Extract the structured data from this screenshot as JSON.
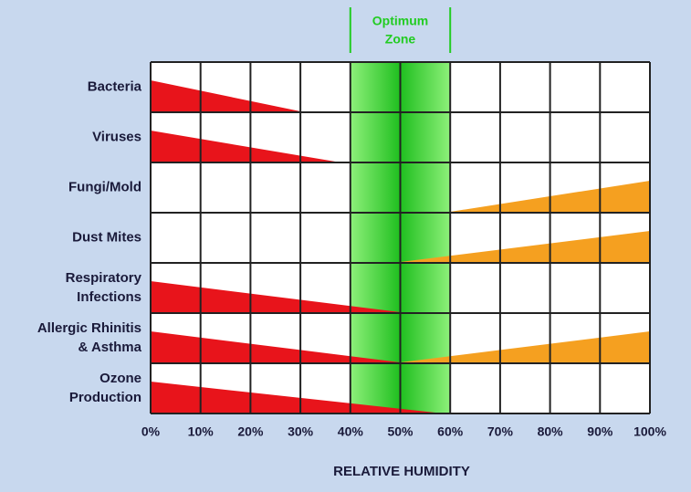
{
  "chart_data": {
    "type": "risk-wedges",
    "xlabel": "RELATIVE HUMIDITY",
    "xlim": [
      0,
      100
    ],
    "xticks": [
      {
        "value": 0,
        "label": "0%"
      },
      {
        "value": 10,
        "label": "10%"
      },
      {
        "value": 20,
        "label": "20%"
      },
      {
        "value": 30,
        "label": "30%"
      },
      {
        "value": 40,
        "label": "40%"
      },
      {
        "value": 50,
        "label": "50%"
      },
      {
        "value": 60,
        "label": "60%"
      },
      {
        "value": 70,
        "label": "70%"
      },
      {
        "value": 80,
        "label": "80%"
      },
      {
        "value": 90,
        "label": "90%"
      },
      {
        "value": 100,
        "label": "100%"
      }
    ],
    "optimum_zone": {
      "label": [
        "Optimum",
        "Zone"
      ],
      "range": [
        40,
        60
      ],
      "color": "#22cc22"
    },
    "low_color": "#e8141b",
    "high_color": "#f5a020",
    "rows": [
      {
        "label": [
          "Bacteria"
        ],
        "low_until": 30,
        "high_from": null
      },
      {
        "label": [
          "Viruses"
        ],
        "low_until": 37,
        "high_from": null
      },
      {
        "label": [
          "Fungi/Mold"
        ],
        "low_until": null,
        "high_from": 60
      },
      {
        "label": [
          "Dust Mites"
        ],
        "low_until": null,
        "high_from": 50
      },
      {
        "label": [
          "Respiratory",
          "Infections"
        ],
        "low_until": 50,
        "high_from": null
      },
      {
        "label": [
          "Allergic Rhinitis",
          "& Asthma"
        ],
        "low_until": 50,
        "high_from": 50
      },
      {
        "label": [
          "Ozone",
          "Production"
        ],
        "low_until": 57,
        "high_from": null
      }
    ]
  }
}
